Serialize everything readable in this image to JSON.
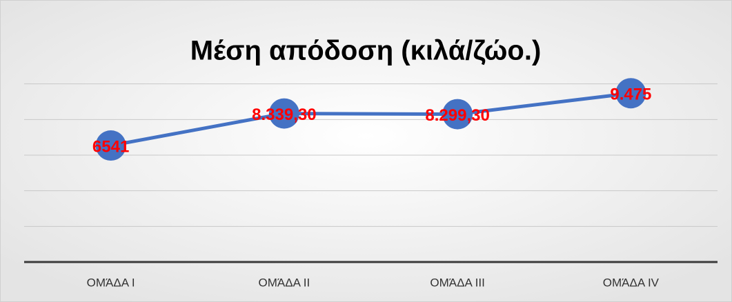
{
  "chart_data": {
    "type": "line",
    "title": "Μέση απόδοση (κιλά/ζώο.)",
    "categories": [
      "ΟΜΆΔΑ Ι",
      "ΟΜΆΔΑ ΙΙ",
      "ΟΜΆΔΑ ΙΙΙ",
      "ΟΜΆΔΑ ΙV"
    ],
    "values": [
      6541,
      8339.3,
      8299.3,
      9475
    ],
    "value_labels": [
      "6541",
      "8.339,30",
      "8.299,30",
      "9.475"
    ],
    "color": "#4472c4",
    "label_color": "#ff0000",
    "ylim": [
      0,
      12000
    ],
    "yticks": [
      0,
      2000,
      4000,
      6000,
      8000,
      10000
    ],
    "grid": true
  }
}
